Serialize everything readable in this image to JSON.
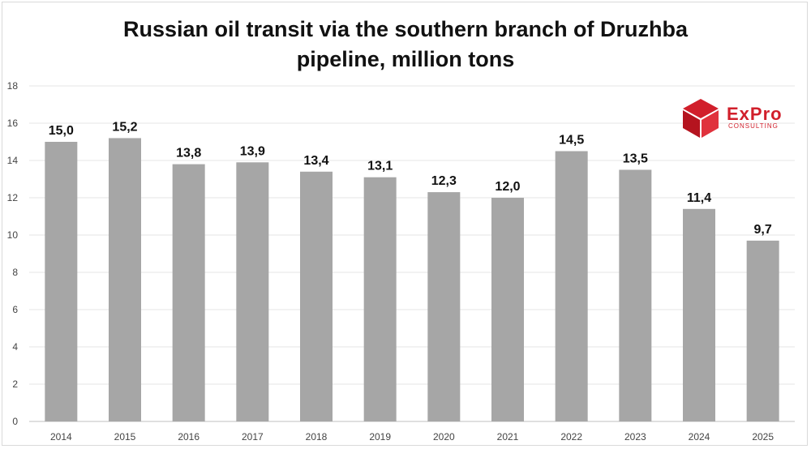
{
  "chart_data": {
    "type": "bar",
    "title": "Russian oil transit via the southern branch of Druzhba pipeline, million tons",
    "title_lines": [
      "Russian oil transit via the southern branch of Druzhba",
      "pipeline, million tons"
    ],
    "categories": [
      "2014",
      "2015",
      "2016",
      "2017",
      "2018",
      "2019",
      "2020",
      "2021",
      "2022",
      "2023",
      "2024",
      "2025"
    ],
    "values": [
      15.0,
      15.2,
      13.8,
      13.9,
      13.4,
      13.1,
      12.3,
      12.0,
      14.5,
      13.5,
      11.4,
      9.7
    ],
    "data_labels": [
      "15,0",
      "15,2",
      "13,8",
      "13,9",
      "13,4",
      "13,1",
      "12,3",
      "12,0",
      "14,5",
      "13,5",
      "11,4",
      "9,7"
    ],
    "y_ticks": [
      "0",
      "2",
      "4",
      "6",
      "8",
      "10",
      "12",
      "14",
      "16",
      "18"
    ],
    "ylim": [
      0,
      18
    ],
    "xlabel": "",
    "ylabel": "",
    "grid": true,
    "bar_color": "#a6a6a6"
  },
  "logo": {
    "name": "ExPro",
    "sub": "CONSULTING",
    "color": "#d11f2b"
  }
}
